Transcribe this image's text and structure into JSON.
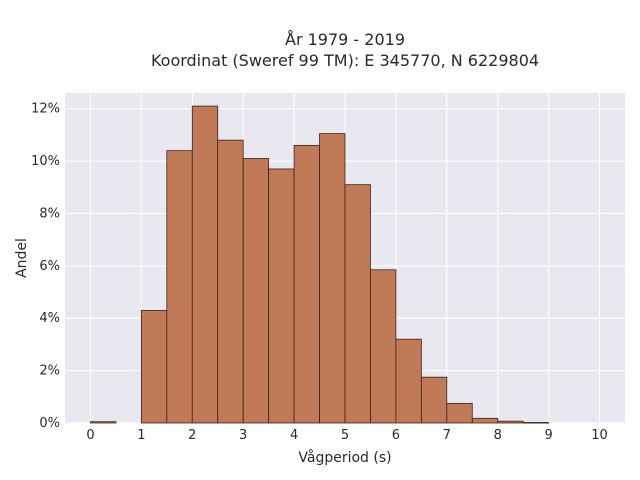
{
  "chart_data": {
    "type": "bar",
    "title_line1": "År 1979 - 2019",
    "title_line2": "Koordinat (Sweref 99 TM): E 345770, N 6229804",
    "xlabel": "Vågperiod (s)",
    "ylabel": "Andel",
    "xlim": [
      -0.5,
      10.5
    ],
    "ylim": [
      0,
      12.6
    ],
    "xticks": [
      0,
      1,
      2,
      3,
      4,
      5,
      6,
      7,
      8,
      9,
      10
    ],
    "xtick_labels": [
      "0",
      "1",
      "2",
      "3",
      "4",
      "5",
      "6",
      "7",
      "8",
      "9",
      "10"
    ],
    "yticks": [
      0,
      2,
      4,
      6,
      8,
      10,
      12
    ],
    "ytick_labels": [
      "0%",
      "2%",
      "4%",
      "6%",
      "8%",
      "10%",
      "12%"
    ],
    "bin_width": 0.5,
    "bin_starts": [
      0,
      0.5,
      1,
      1.5,
      2,
      2.5,
      3,
      3.5,
      4,
      4.5,
      5,
      5.5,
      6,
      6.5,
      7,
      7.5,
      8,
      8.5,
      9,
      9.5
    ],
    "values": [
      0.05,
      0,
      4.3,
      10.4,
      12.1,
      10.8,
      10.1,
      9.7,
      10.6,
      11.05,
      9.1,
      5.85,
      3.2,
      1.75,
      0.75,
      0.18,
      0.07,
      0.02,
      0,
      0
    ],
    "grid": true,
    "colors": {
      "bar_fill": "#c07a57",
      "bar_edge": "#3d2418",
      "plot_bg": "#e8e8f0",
      "grid": "#ffffff"
    }
  }
}
